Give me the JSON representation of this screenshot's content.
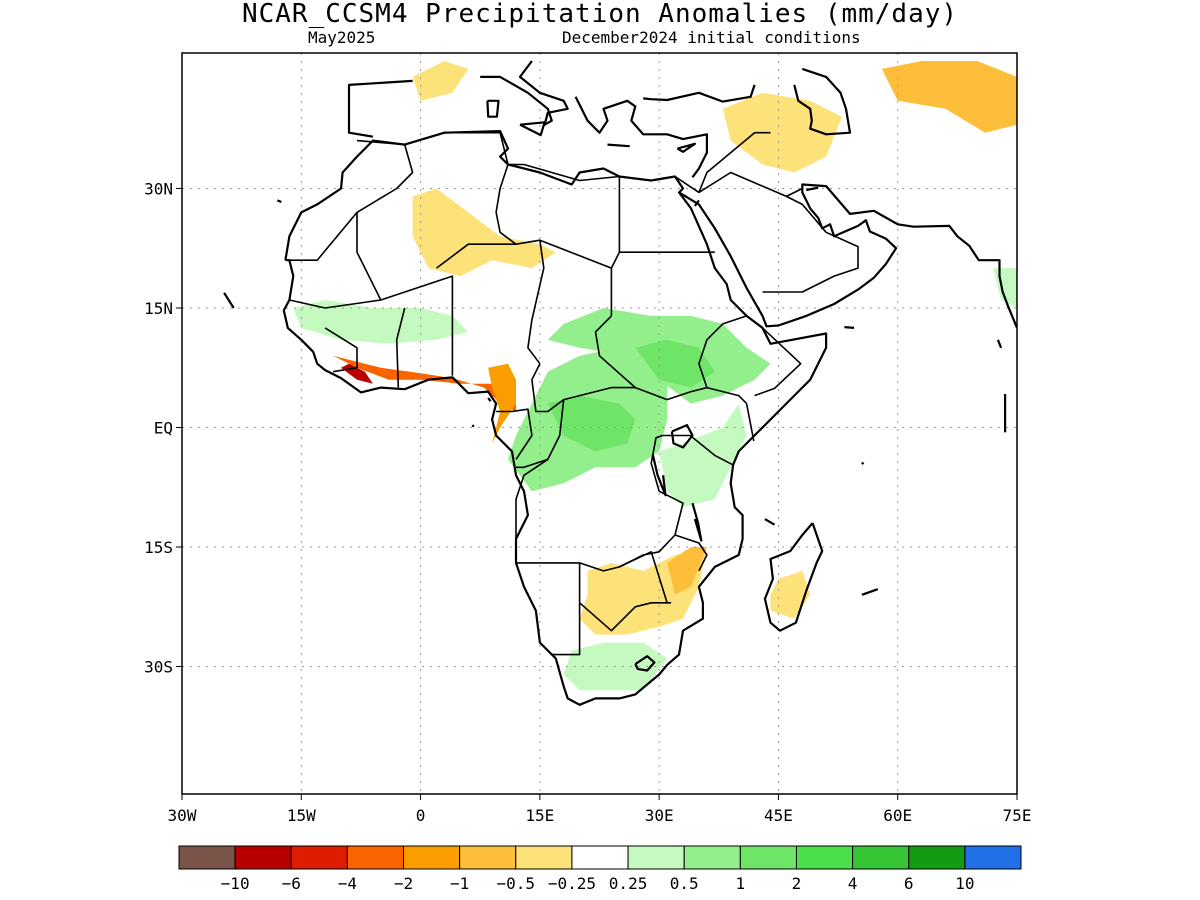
{
  "title": "NCAR_CCSM4 Precipitation Anomalies (mm/day)",
  "subtitle_left": "May2025",
  "subtitle_right": "December2024 initial conditions",
  "map": {
    "projection": "equirectangular",
    "lon_range": [
      -30,
      75
    ],
    "lat_range": [
      -46,
      47
    ],
    "gridlines": "dotted",
    "x_ticks": [
      {
        "lon": -30,
        "label": "30W"
      },
      {
        "lon": -15,
        "label": "15W"
      },
      {
        "lon": 0,
        "label": "0"
      },
      {
        "lon": 15,
        "label": "15E"
      },
      {
        "lon": 30,
        "label": "30E"
      },
      {
        "lon": 45,
        "label": "45E"
      },
      {
        "lon": 60,
        "label": "60E"
      },
      {
        "lon": 75,
        "label": "75E"
      }
    ],
    "y_ticks": [
      {
        "lat": 30,
        "label": "30N"
      },
      {
        "lat": 15,
        "label": "15N"
      },
      {
        "lat": 0,
        "label": "EQ"
      },
      {
        "lat": -15,
        "label": "15S"
      },
      {
        "lat": -30,
        "label": "30S"
      }
    ]
  },
  "colorbar": {
    "colors": [
      "#7a5448",
      "#b80000",
      "#dd1c00",
      "#fa6400",
      "#fa9e00",
      "#fdbf3a",
      "#fde27a",
      "#ffffff",
      "#c4fac0",
      "#93ee8c",
      "#6ee566",
      "#4bdf4b",
      "#35c535",
      "#139b13",
      "#2170e8"
    ],
    "labels": [
      "−10",
      "−6",
      "−4",
      "−2",
      "−1",
      "−0.5",
      "−0.25",
      "0.25",
      "0.5",
      "1",
      "2",
      "4",
      "6",
      "10"
    ]
  },
  "anomaly_regions": [
    {
      "name": "west-africa-coast-dry",
      "level": -4,
      "color": "#fa6400",
      "points": [
        [
          -11,
          9
        ],
        [
          -8,
          7.5
        ],
        [
          -4,
          6
        ],
        [
          0,
          6
        ],
        [
          5,
          5.5
        ],
        [
          9,
          5.5
        ],
        [
          12,
          5
        ],
        [
          12,
          2
        ],
        [
          10,
          3
        ],
        [
          8,
          5
        ],
        [
          4,
          6.2
        ],
        [
          0,
          6.8
        ],
        [
          -5,
          7.5
        ],
        [
          -9,
          8.5
        ]
      ]
    },
    {
      "name": "liberia-dry-core",
      "level": -6,
      "color": "#b80000",
      "points": [
        [
          -10,
          7.5
        ],
        [
          -8,
          6
        ],
        [
          -6,
          5.5
        ],
        [
          -7,
          7
        ],
        [
          -9,
          8
        ]
      ]
    },
    {
      "name": "cameroon-dry",
      "level": -2,
      "color": "#fa9e00",
      "points": [
        [
          8.5,
          7.5
        ],
        [
          11,
          8
        ],
        [
          12,
          6
        ],
        [
          12,
          3
        ],
        [
          10,
          0
        ],
        [
          9,
          -2
        ],
        [
          10,
          2
        ],
        [
          9,
          5
        ]
      ]
    },
    {
      "name": "congo-basin-wet",
      "level": 1,
      "color": "#93ee8c",
      "points": [
        [
          12,
          -1
        ],
        [
          14,
          3
        ],
        [
          16,
          7
        ],
        [
          20,
          9
        ],
        [
          25,
          10
        ],
        [
          28,
          9
        ],
        [
          31,
          6
        ],
        [
          31,
          1
        ],
        [
          30,
          -3
        ],
        [
          27,
          -5
        ],
        [
          22,
          -5
        ],
        [
          18,
          -7
        ],
        [
          14,
          -8
        ],
        [
          11,
          -4
        ]
      ]
    },
    {
      "name": "central-africa-wet-core",
      "level": 2,
      "color": "#6ee566",
      "points": [
        [
          16,
          3
        ],
        [
          20,
          4
        ],
        [
          25,
          3
        ],
        [
          27,
          1
        ],
        [
          26,
          -2
        ],
        [
          22,
          -3
        ],
        [
          18,
          -1
        ]
      ]
    },
    {
      "name": "sudan-ethiopia-wet",
      "level": 1,
      "color": "#93ee8c",
      "points": [
        [
          18,
          13
        ],
        [
          23,
          15
        ],
        [
          29,
          14
        ],
        [
          34,
          14
        ],
        [
          38,
          13
        ],
        [
          41,
          10
        ],
        [
          44,
          8
        ],
        [
          42,
          6
        ],
        [
          38,
          4
        ],
        [
          34,
          3
        ],
        [
          30,
          6
        ],
        [
          26,
          9
        ],
        [
          20,
          10
        ],
        [
          16,
          11
        ]
      ]
    },
    {
      "name": "south-sudan-wet-core",
      "level": 2,
      "color": "#6ee566",
      "points": [
        [
          27,
          10
        ],
        [
          31,
          11
        ],
        [
          35,
          10
        ],
        [
          37,
          7
        ],
        [
          34,
          5
        ],
        [
          30,
          6
        ]
      ]
    },
    {
      "name": "sahel-west-wet",
      "level": 0.5,
      "color": "#c4fac0",
      "points": [
        [
          -16,
          15
        ],
        [
          -12,
          16
        ],
        [
          -6,
          15
        ],
        [
          0,
          15
        ],
        [
          4,
          14
        ],
        [
          6,
          12
        ],
        [
          2,
          11
        ],
        [
          -4,
          10.5
        ],
        [
          -10,
          11
        ],
        [
          -15,
          12.5
        ]
      ]
    },
    {
      "name": "east-africa-wet",
      "level": 0.5,
      "color": "#c4fac0",
      "points": [
        [
          30,
          -3
        ],
        [
          33,
          -2
        ],
        [
          38,
          0
        ],
        [
          40,
          3
        ],
        [
          41,
          -1
        ],
        [
          39,
          -5
        ],
        [
          37,
          -9
        ],
        [
          33,
          -10
        ],
        [
          31,
          -8
        ]
      ]
    },
    {
      "name": "sahara-dry",
      "level": -0.5,
      "color": "#fde27a",
      "points": [
        [
          -1,
          29
        ],
        [
          2,
          30
        ],
        [
          6,
          27
        ],
        [
          10,
          24
        ],
        [
          15,
          23
        ],
        [
          17,
          22
        ],
        [
          14,
          20
        ],
        [
          9,
          21
        ],
        [
          5,
          19
        ],
        [
          1,
          20
        ],
        [
          -1,
          24
        ]
      ]
    },
    {
      "name": "southern-africa-dry",
      "level": -0.5,
      "color": "#fde27a",
      "points": [
        [
          21,
          -18
        ],
        [
          24,
          -17
        ],
        [
          28,
          -18
        ],
        [
          32,
          -16
        ],
        [
          36,
          -15
        ],
        [
          35,
          -20
        ],
        [
          33,
          -24
        ],
        [
          30,
          -25
        ],
        [
          26,
          -26
        ],
        [
          22,
          -26
        ],
        [
          20,
          -24
        ],
        [
          21,
          -21
        ]
      ]
    },
    {
      "name": "southern-africa-dry-core",
      "level": -1,
      "color": "#fdbf3a",
      "points": [
        [
          31,
          -17
        ],
        [
          34,
          -15
        ],
        [
          36,
          -15
        ],
        [
          34,
          -20
        ],
        [
          32,
          -21
        ]
      ]
    },
    {
      "name": "south-africa-wet",
      "level": 0.5,
      "color": "#c4fac0",
      "points": [
        [
          19,
          -28
        ],
        [
          23,
          -27
        ],
        [
          28,
          -27
        ],
        [
          31,
          -29
        ],
        [
          28,
          -33
        ],
        [
          24,
          -33
        ],
        [
          20,
          -33
        ],
        [
          18,
          -31
        ]
      ]
    },
    {
      "name": "madagascar-dry",
      "level": -0.5,
      "color": "#fde27a",
      "points": [
        [
          45,
          -19
        ],
        [
          48,
          -18
        ],
        [
          49,
          -21
        ],
        [
          47,
          -24
        ],
        [
          44,
          -23
        ],
        [
          44,
          -21
        ]
      ]
    },
    {
      "name": "arabia-dry",
      "level": -0.5,
      "color": "#fde27a",
      "points": [
        [
          38,
          40
        ],
        [
          43,
          42
        ],
        [
          49,
          41
        ],
        [
          53,
          39
        ],
        [
          51,
          34
        ],
        [
          47,
          32
        ],
        [
          43,
          33
        ],
        [
          39,
          36
        ]
      ]
    },
    {
      "name": "iran-dry",
      "level": -1,
      "color": "#fdbf3a",
      "points": [
        [
          58,
          45
        ],
        [
          63,
          46
        ],
        [
          70,
          46
        ],
        [
          75,
          44
        ],
        [
          75,
          38
        ],
        [
          71,
          37
        ],
        [
          66,
          40
        ],
        [
          60,
          41
        ]
      ]
    },
    {
      "name": "mediterranean-north-dry",
      "level": -0.5,
      "color": "#fde27a",
      "points": [
        [
          -1,
          44
        ],
        [
          3,
          46
        ],
        [
          6,
          45
        ],
        [
          4,
          42
        ],
        [
          0,
          41
        ]
      ]
    },
    {
      "name": "india-wet",
      "level": 0.5,
      "color": "#c4fac0",
      "points": [
        [
          72,
          20
        ],
        [
          75,
          20
        ],
        [
          75,
          15
        ],
        [
          73,
          16
        ]
      ]
    }
  ],
  "country_borders": [
    [
      [
        -8,
        36
      ],
      [
        -2,
        35.5
      ],
      [
        3,
        37
      ],
      [
        10,
        37
      ],
      [
        11,
        33
      ],
      [
        13,
        33
      ],
      [
        20,
        31
      ],
      [
        25,
        31.5
      ],
      [
        29,
        31
      ],
      [
        32,
        31.5
      ]
    ],
    [
      [
        -17,
        21
      ],
      [
        -13,
        21
      ],
      [
        -8,
        27
      ],
      [
        -3,
        30
      ],
      [
        -1,
        32
      ],
      [
        -2,
        35.5
      ]
    ],
    [
      [
        -8,
        27
      ],
      [
        -8,
        22
      ],
      [
        -5,
        16
      ],
      [
        4,
        19
      ],
      [
        4,
        12
      ]
    ],
    [
      [
        -5,
        16
      ],
      [
        -12,
        15
      ],
      [
        -16.5,
        16
      ]
    ],
    [
      [
        2,
        20
      ],
      [
        6,
        23
      ],
      [
        12,
        23
      ],
      [
        15,
        23.5
      ],
      [
        24,
        20
      ],
      [
        24,
        14
      ]
    ],
    [
      [
        11,
        33
      ],
      [
        10,
        30
      ],
      [
        9.5,
        27
      ],
      [
        10,
        24.5
      ],
      [
        12,
        23
      ]
    ],
    [
      [
        25,
        31.5
      ],
      [
        25,
        22
      ],
      [
        37,
        22
      ]
    ],
    [
      [
        25,
        22
      ],
      [
        24,
        20
      ]
    ],
    [
      [
        24,
        14
      ],
      [
        22,
        12
      ],
      [
        22.5,
        9
      ],
      [
        27,
        5
      ],
      [
        31,
        3.5
      ],
      [
        34,
        4.5
      ],
      [
        36,
        5
      ],
      [
        40,
        4
      ],
      [
        41,
        3
      ]
    ],
    [
      [
        15,
        23.5
      ],
      [
        15.5,
        20
      ],
      [
        14,
        13.5
      ],
      [
        13.5,
        10
      ],
      [
        15,
        8
      ]
    ],
    [
      [
        4,
        12
      ],
      [
        4,
        6.5
      ]
    ],
    [
      [
        -2,
        15
      ],
      [
        -3,
        11
      ],
      [
        -2.8,
        5
      ]
    ],
    [
      [
        -12,
        12.5
      ],
      [
        -8,
        10
      ],
      [
        -8,
        7.5
      ],
      [
        -11,
        7
      ]
    ],
    [
      [
        15,
        8
      ],
      [
        14,
        6
      ],
      [
        14.5,
        2
      ],
      [
        16,
        2
      ],
      [
        18,
        3.5
      ],
      [
        24,
        5
      ],
      [
        27,
        5
      ]
    ],
    [
      [
        9.5,
        2
      ],
      [
        11.5,
        2
      ],
      [
        13.5,
        2.3
      ],
      [
        14,
        -1
      ],
      [
        12,
        -4
      ]
    ],
    [
      [
        18,
        3.5
      ],
      [
        17.5,
        -1
      ],
      [
        16,
        -4
      ],
      [
        13,
        -5
      ],
      [
        12,
        -5
      ]
    ],
    [
      [
        16,
        -4
      ],
      [
        13,
        -6
      ],
      [
        12,
        -9
      ],
      [
        12,
        -17
      ]
    ],
    [
      [
        12,
        -17
      ],
      [
        20,
        -17
      ],
      [
        23,
        -18
      ],
      [
        25,
        -17.5
      ],
      [
        28,
        -16
      ],
      [
        30,
        -15.6
      ],
      [
        32,
        -13.5
      ],
      [
        33,
        -9.5
      ],
      [
        30,
        -8
      ],
      [
        29,
        -4.5
      ],
      [
        29.6,
        -1.3
      ],
      [
        30.4,
        -1
      ],
      [
        33.9,
        -1
      ],
      [
        37,
        -3.5
      ],
      [
        39.3,
        -4.7
      ]
    ],
    [
      [
        20,
        -17
      ],
      [
        20,
        -22
      ],
      [
        20,
        -24.7
      ],
      [
        20,
        -28.5
      ],
      [
        16.5,
        -28.5
      ]
    ],
    [
      [
        20,
        -22
      ],
      [
        24,
        -25.5
      ],
      [
        27,
        -22.5
      ],
      [
        29,
        -22
      ],
      [
        31.5,
        -22
      ]
    ],
    [
      [
        25,
        -17.5
      ],
      [
        29,
        -15.6
      ],
      [
        31,
        -22
      ]
    ],
    [
      [
        32,
        -13.5
      ],
      [
        35,
        -14.5
      ],
      [
        36,
        -16
      ],
      [
        35,
        -18
      ]
    ],
    [
      [
        41,
        3
      ],
      [
        41.9,
        -1.7
      ]
    ],
    [
      [
        36,
        5
      ],
      [
        35,
        8
      ],
      [
        36,
        11
      ],
      [
        38,
        13
      ],
      [
        41,
        14
      ],
      [
        43,
        12.5
      ]
    ],
    [
      [
        43,
        12.5
      ],
      [
        47.8,
        8
      ],
      [
        44.5,
        4.9
      ],
      [
        42,
        4
      ]
    ],
    [
      [
        32,
        31.5
      ],
      [
        35,
        29.5
      ],
      [
        36,
        32
      ],
      [
        42,
        37
      ],
      [
        44,
        37
      ]
    ],
    [
      [
        35,
        29.5
      ],
      [
        39,
        32
      ],
      [
        46,
        29
      ],
      [
        48,
        30
      ]
    ],
    [
      [
        46,
        29
      ],
      [
        48,
        28
      ],
      [
        51,
        24.5
      ],
      [
        55,
        22.7
      ],
      [
        55,
        20
      ],
      [
        52,
        19
      ],
      [
        48,
        17
      ],
      [
        43,
        17
      ]
    ]
  ]
}
